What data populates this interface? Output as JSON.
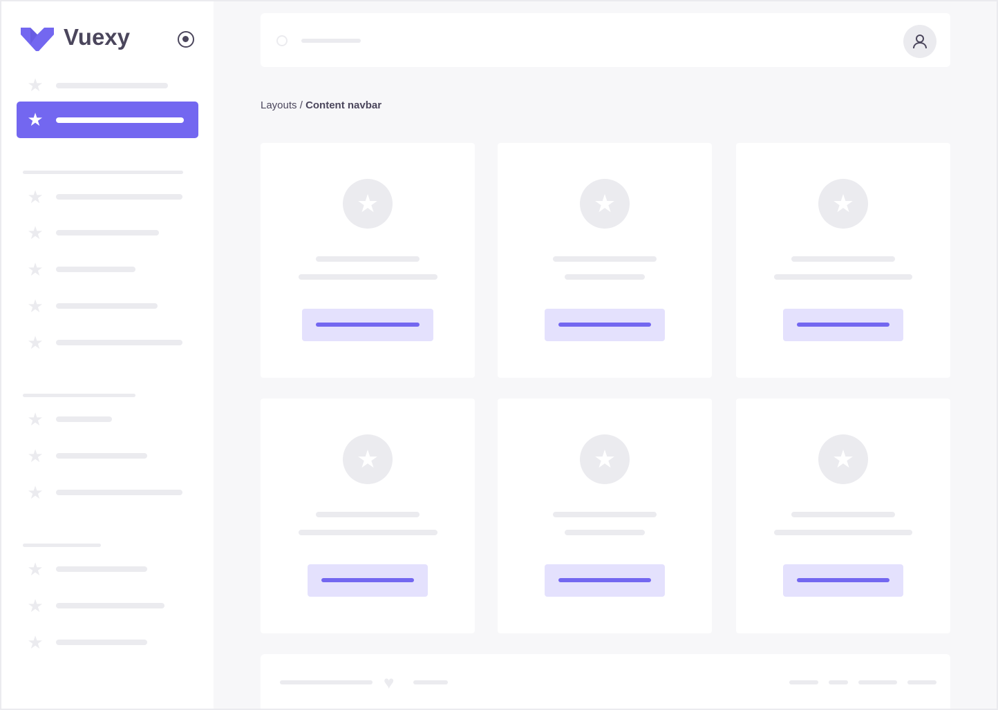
{
  "brand": {
    "name": "Vuexy",
    "color": "#7367f0",
    "logo_icon": "vuexy-logo",
    "toggle_icon": "radio-circle-icon"
  },
  "breadcrumb": {
    "parent": "Layouts",
    "separator": " / ",
    "current": "Content navbar"
  },
  "navbar": {
    "search_icon": "search-icon",
    "avatar_icon": "user-icon"
  },
  "sidebar": {
    "active_index": 1,
    "item_icon": "star-icon"
  },
  "cards": {
    "count": 6,
    "icon": "star-icon"
  },
  "footer": {
    "icon": "heart-icon"
  },
  "colors": {
    "accent": "#7367f0",
    "accent_light": "#e4e1fd",
    "placeholder": "#ebebef",
    "background": "#f7f7f9"
  }
}
